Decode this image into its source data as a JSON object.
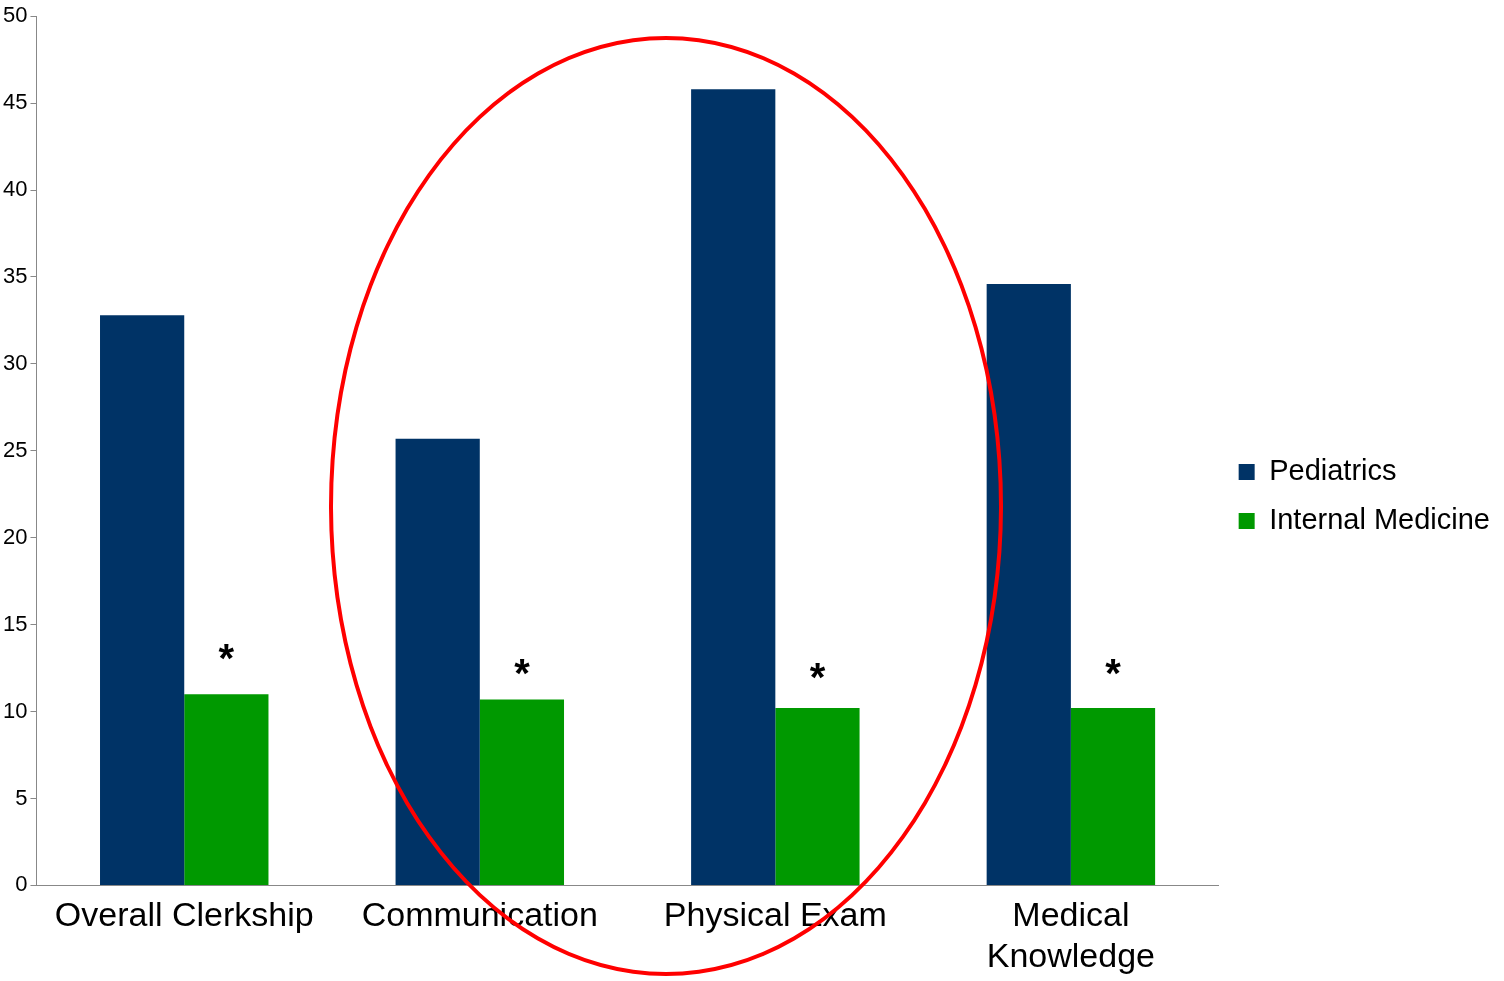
{
  "chart_data": {
    "type": "bar",
    "categories": [
      "Overall Clerkship",
      "Communication",
      "Physical Exam",
      "Medical\nKnowledge"
    ],
    "series": [
      {
        "name": "Pediatrics",
        "color": "#003366",
        "values": [
          32.8,
          25.7,
          45.8,
          34.6
        ]
      },
      {
        "name": "Internal Medicine",
        "color": "#009900",
        "values": [
          11.0,
          10.7,
          10.2,
          10.2
        ]
      }
    ],
    "ylim": [
      0,
      50
    ],
    "yticks": [
      0,
      5,
      10,
      15,
      20,
      25,
      30,
      35,
      40,
      45,
      50
    ],
    "grid": false,
    "legend": "right",
    "annotations": [
      {
        "text": "*",
        "x": "Overall Clerkship",
        "y": 13.5
      },
      {
        "text": "*",
        "x": "Communication",
        "y": 12.6
      },
      {
        "text": "*",
        "x": "Physical Exam",
        "y": 12.4
      },
      {
        "text": "*",
        "x": "Medical\nKnowledge",
        "y": 12.6
      }
    ]
  }
}
